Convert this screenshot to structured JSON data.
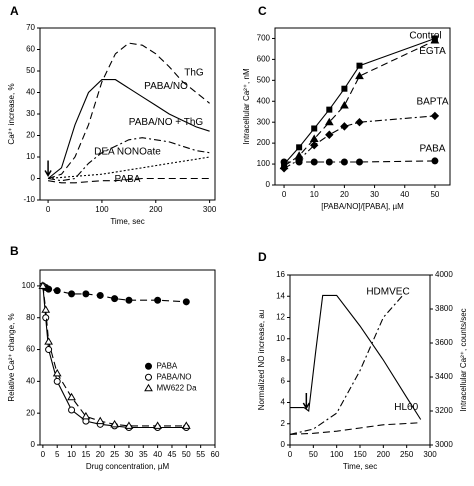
{
  "chart_data": [
    {
      "type": "line",
      "label": "A",
      "xlabel": "Time, sec",
      "ylabel": "Ca²⁺ increase, %",
      "x": [
        0,
        25,
        50,
        75,
        100,
        125,
        150,
        175,
        200,
        225,
        250,
        275,
        300
      ],
      "xlim": [
        -15,
        310
      ],
      "xticks": [
        0,
        100,
        200,
        300
      ],
      "ylim": [
        -10,
        70
      ],
      "yticks": [
        -10,
        0,
        10,
        20,
        30,
        40,
        50,
        60,
        70
      ],
      "series": [
        {
          "name": "ThG",
          "color": "#000000",
          "line_style": "dashed",
          "values": [
            0,
            2,
            10,
            25,
            45,
            58,
            63,
            62,
            58,
            52,
            45,
            40,
            35
          ]
        },
        {
          "name": "PABA/NO",
          "color": "#000000",
          "line_style": "solid",
          "values": [
            0,
            5,
            25,
            40,
            46,
            46,
            42,
            38,
            34,
            30,
            27,
            24,
            22
          ]
        },
        {
          "name": "PABA/NO + ThG",
          "color": "#000000",
          "line_style": "dashdot",
          "values": [
            0,
            -1,
            0,
            7,
            12,
            15,
            18,
            19,
            18,
            17,
            15,
            13,
            12
          ]
        },
        {
          "name": "DEA NONOate",
          "color": "#000000",
          "line_style": "dotted",
          "values": [
            0,
            0.5,
            1,
            1.5,
            2,
            3,
            4,
            5,
            6,
            7,
            8,
            9,
            10
          ]
        },
        {
          "name": "PABA",
          "color": "#000000",
          "line_style": "dashed",
          "values": [
            -1,
            -2,
            -2,
            -1.5,
            -1,
            -1,
            -0.5,
            0,
            0,
            0,
            0,
            0,
            0
          ]
        }
      ]
    },
    {
      "type": "line",
      "label": "C",
      "xlabel": "[PABA/NO]/[PABA], µM",
      "ylabel": "Intracellular Ca²⁺, nM",
      "x": [
        0,
        5,
        10,
        15,
        20,
        25,
        50
      ],
      "xlim": [
        -3,
        55
      ],
      "xticks": [
        0,
        10,
        20,
        30,
        40,
        50
      ],
      "ylim": [
        0,
        750
      ],
      "yticks": [
        0,
        100,
        200,
        300,
        400,
        500,
        600,
        700
      ],
      "series": [
        {
          "name": "Control",
          "color": "#000000",
          "line_style": "solid",
          "marker": "square",
          "values": [
            100,
            180,
            270,
            360,
            460,
            570,
            700
          ]
        },
        {
          "name": "EGTA",
          "color": "#000000",
          "line_style": "dashed",
          "marker": "triangle",
          "values": [
            90,
            140,
            220,
            300,
            380,
            520,
            690
          ]
        },
        {
          "name": "BAPTA",
          "color": "#000000",
          "line_style": "dashdot",
          "marker": "diamond",
          "values": [
            80,
            120,
            190,
            240,
            280,
            300,
            330
          ]
        },
        {
          "name": "PABA",
          "color": "#000000",
          "line_style": "dashed",
          "marker": "circle",
          "values": [
            110,
            110,
            110,
            110,
            110,
            110,
            115
          ]
        }
      ]
    },
    {
      "type": "scatter",
      "label": "B",
      "xlabel": "Drug concentration, µM",
      "ylabel": "Relative Ca²⁺ change, %",
      "x": [
        0,
        1,
        2,
        5,
        10,
        15,
        20,
        25,
        30,
        40,
        50
      ],
      "xlim": [
        -1,
        60
      ],
      "xticks": [
        0,
        5,
        10,
        15,
        20,
        25,
        30,
        35,
        40,
        45,
        50,
        55,
        60
      ],
      "ylim": [
        0,
        110
      ],
      "yticks": [
        0,
        20,
        40,
        60,
        80,
        100
      ],
      "series": [
        {
          "name": "PABA",
          "color": "#000000",
          "line_style": "dashed",
          "marker": "filled-circle",
          "values": [
            100,
            99,
            98,
            97,
            95,
            95,
            94,
            92,
            91,
            91,
            90
          ]
        },
        {
          "name": "PABA/NO",
          "color": "#000000",
          "line_style": "solid",
          "marker": "open-circle",
          "values": [
            100,
            80,
            60,
            40,
            22,
            15,
            13,
            12,
            11,
            11,
            11
          ]
        },
        {
          "name": "MW622 Da",
          "color": "#000000",
          "line_style": "dashed",
          "marker": "open-triangle",
          "values": [
            100,
            85,
            65,
            45,
            30,
            18,
            15,
            13,
            12,
            12,
            12
          ]
        }
      ]
    },
    {
      "type": "line",
      "label": "D",
      "xlabel": "Time, sec",
      "ylabel": "Normalized NO increase, au",
      "y2label": "Intracellular Ca²⁺, counts/sec",
      "xlim": [
        0,
        300
      ],
      "xticks": [
        0,
        50,
        100,
        150,
        200,
        250,
        300
      ],
      "ylim": [
        0,
        16
      ],
      "yticks": [
        0,
        2,
        4,
        6,
        8,
        10,
        12,
        14,
        16
      ],
      "y2lim": [
        3000,
        4000
      ],
      "y2ticks": [
        3000,
        3200,
        3400,
        3600,
        3800,
        4000
      ],
      "series": [
        {
          "name": "HDMVEC",
          "color": "#000000",
          "line_style": "dashdot",
          "x": [
            0,
            50,
            100,
            150,
            200,
            240
          ],
          "values": [
            1,
            1.5,
            3,
            7,
            12,
            14
          ]
        },
        {
          "name": "HL60",
          "color": "#000000",
          "line_style": "dashed",
          "x": [
            0,
            50,
            100,
            150,
            200,
            280
          ],
          "values": [
            1,
            1.1,
            1.3,
            1.6,
            1.9,
            2.1
          ]
        },
        {
          "axis": "y2",
          "color": "#000000",
          "line_style": "solid",
          "x": [
            0,
            30,
            40,
            55,
            70,
            100,
            150,
            200,
            250,
            280
          ],
          "values": [
            3220,
            3220,
            3200,
            3550,
            3880,
            3880,
            3700,
            3500,
            3280,
            3150
          ]
        }
      ]
    }
  ]
}
